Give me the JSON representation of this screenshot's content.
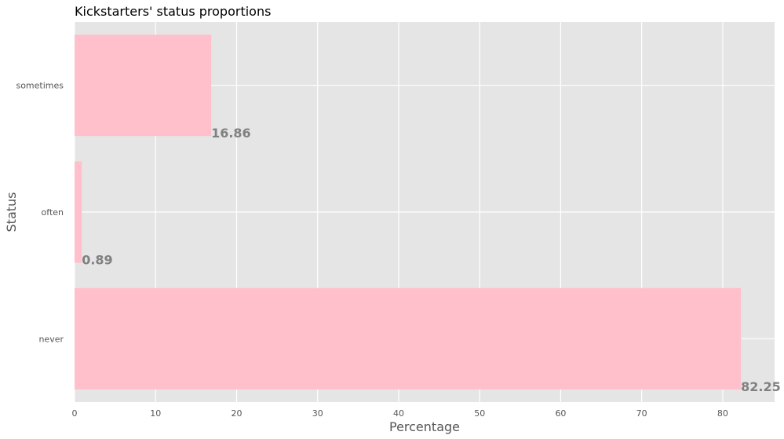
{
  "chart_data": {
    "type": "bar",
    "orientation": "horizontal",
    "title": "Kickstarters' status proportions",
    "xlabel": "Percentage",
    "ylabel": "Status",
    "categories": [
      "never",
      "often",
      "sometimes"
    ],
    "values": [
      82.25,
      0.89,
      16.86
    ],
    "data_labels": [
      "82.25",
      "0.89",
      "16.86"
    ],
    "xlim": [
      0,
      86.4
    ],
    "xticks": [
      0,
      10,
      20,
      30,
      40,
      50,
      60,
      70,
      80
    ],
    "xtick_labels": [
      "0",
      "10",
      "20",
      "30",
      "40",
      "50",
      "60",
      "70",
      "80"
    ],
    "grid": true,
    "colors": {
      "bar": "#ffc0cb",
      "plot_background": "#e5e5e5",
      "grid": "#ffffff",
      "data_label": "#808080"
    }
  }
}
